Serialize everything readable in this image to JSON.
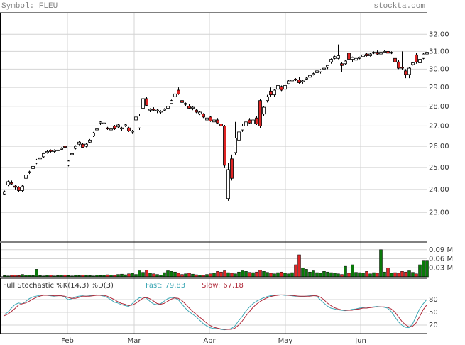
{
  "header": {
    "symbol": "Symbol: FLEU",
    "site": "stockta.com"
  },
  "chart_data": [
    {
      "type": "candlestick",
      "log": true,
      "grid": true,
      "up_color": "#ffffff",
      "down_color": "#e02424",
      "xlim": [
        -0.6,
        119.6
      ],
      "ylim": [
        21.8,
        33.3
      ],
      "xticks": [
        {
          "value": 17.8,
          "label": "Feb"
        },
        {
          "value": 36.6,
          "label": "Mar"
        },
        {
          "value": 57.8,
          "label": "Apr"
        },
        {
          "value": 79.2,
          "label": "May"
        },
        {
          "value": 100.4,
          "label": "Jun"
        }
      ],
      "yticks": [
        {
          "value": 23,
          "label": "23.00"
        },
        {
          "value": 24,
          "label": "24.00"
        },
        {
          "value": 25,
          "label": "25.00"
        },
        {
          "value": 26,
          "label": "26.00"
        },
        {
          "value": 27,
          "label": "27.00"
        },
        {
          "value": 28,
          "label": "28.00"
        },
        {
          "value": 29,
          "label": "29.00"
        },
        {
          "value": 30,
          "label": "30.00"
        },
        {
          "value": 31,
          "label": "31.00"
        },
        {
          "value": 32,
          "label": "32.00"
        }
      ],
      "candles": [
        [
          23.8,
          23.95,
          23.75,
          23.9
        ],
        [
          24.2,
          24.4,
          24.15,
          24.35
        ],
        [
          24.3,
          24.4,
          24.2,
          24.25
        ],
        [
          24.15,
          24.2,
          24.0,
          24.1
        ],
        [
          24.1,
          24.15,
          23.9,
          23.95
        ],
        [
          23.95,
          24.2,
          23.9,
          24.15
        ],
        [
          24.5,
          24.7,
          24.45,
          24.65
        ],
        [
          24.75,
          24.85,
          24.7,
          24.8
        ],
        [
          24.95,
          25.1,
          24.9,
          25.05
        ],
        [
          25.2,
          25.4,
          25.15,
          25.35
        ],
        [
          25.4,
          25.5,
          25.3,
          25.45
        ],
        [
          25.5,
          25.7,
          25.45,
          25.65
        ],
        [
          25.7,
          25.8,
          25.65,
          25.75
        ],
        [
          25.8,
          25.85,
          25.7,
          25.75
        ],
        [
          25.75,
          25.85,
          25.7,
          25.8
        ],
        [
          25.8,
          25.85,
          25.75,
          25.82
        ],
        [
          25.85,
          25.95,
          25.8,
          25.9
        ],
        [
          26.0,
          26.1,
          25.85,
          25.95
        ],
        [
          25.1,
          25.35,
          25.05,
          25.3
        ],
        [
          25.6,
          25.7,
          25.5,
          25.65
        ],
        [
          25.9,
          26.05,
          25.85,
          26.0
        ],
        [
          26.1,
          26.25,
          26.05,
          26.2
        ],
        [
          26.1,
          26.15,
          25.9,
          25.95
        ],
        [
          26.0,
          26.15,
          25.95,
          26.1
        ],
        [
          26.2,
          26.35,
          26.15,
          26.3
        ],
        [
          26.5,
          26.7,
          26.45,
          26.65
        ],
        [
          26.8,
          26.9,
          26.7,
          26.85
        ],
        [
          27.15,
          27.25,
          27.05,
          27.2
        ],
        [
          27.1,
          27.2,
          27.0,
          27.15
        ],
        [
          26.9,
          26.95,
          26.8,
          26.85
        ],
        [
          26.8,
          26.9,
          26.7,
          26.85
        ],
        [
          27.0,
          27.05,
          26.8,
          26.85
        ],
        [
          26.95,
          27.1,
          26.9,
          27.05
        ],
        [
          26.85,
          26.95,
          26.75,
          26.9
        ],
        [
          27.0,
          27.1,
          26.95,
          27.05
        ],
        [
          26.9,
          26.95,
          26.7,
          26.75
        ],
        [
          26.7,
          26.8,
          26.6,
          26.75
        ],
        [
          27.3,
          27.5,
          27.2,
          27.45
        ],
        [
          26.9,
          27.6,
          26.8,
          27.5
        ],
        [
          27.9,
          28.45,
          27.85,
          28.4
        ],
        [
          28.4,
          28.5,
          28.0,
          28.05
        ],
        [
          27.8,
          27.9,
          27.7,
          27.85
        ],
        [
          27.85,
          27.95,
          27.75,
          27.8
        ],
        [
          27.75,
          27.85,
          27.65,
          27.8
        ],
        [
          27.7,
          27.8,
          27.6,
          27.75
        ],
        [
          27.8,
          27.9,
          27.75,
          27.85
        ],
        [
          27.9,
          28.05,
          27.85,
          28.0
        ],
        [
          28.15,
          28.35,
          28.1,
          28.3
        ],
        [
          28.5,
          28.7,
          28.45,
          28.65
        ],
        [
          28.85,
          29.0,
          28.6,
          28.65
        ],
        [
          28.3,
          28.35,
          28.15,
          28.2
        ],
        [
          28.1,
          28.2,
          28.0,
          28.15
        ],
        [
          28.0,
          28.1,
          27.85,
          27.9
        ],
        [
          27.9,
          28.0,
          27.8,
          27.95
        ],
        [
          27.8,
          27.85,
          27.65,
          27.7
        ],
        [
          27.6,
          27.75,
          27.55,
          27.7
        ],
        [
          27.6,
          27.65,
          27.4,
          27.45
        ],
        [
          27.3,
          27.45,
          27.2,
          27.4
        ],
        [
          27.45,
          27.5,
          27.2,
          27.25
        ],
        [
          27.2,
          27.35,
          27.0,
          27.3
        ],
        [
          27.3,
          27.4,
          27.1,
          27.15
        ],
        [
          27.1,
          27.2,
          26.9,
          27.0
        ],
        [
          27.0,
          27.05,
          25.0,
          25.1
        ],
        [
          23.6,
          25.2,
          23.5,
          24.9
        ],
        [
          25.4,
          25.6,
          24.4,
          24.5
        ],
        [
          25.7,
          27.2,
          25.6,
          26.4
        ],
        [
          26.3,
          26.8,
          26.2,
          26.7
        ],
        [
          26.8,
          27.1,
          26.7,
          27.0
        ],
        [
          27.0,
          27.3,
          26.9,
          27.2
        ],
        [
          27.3,
          27.4,
          27.1,
          27.15
        ],
        [
          27.1,
          27.4,
          27.0,
          27.3
        ],
        [
          27.4,
          27.5,
          27.05,
          27.1
        ],
        [
          28.3,
          28.4,
          26.9,
          27.0
        ],
        [
          27.6,
          28.0,
          27.5,
          27.95
        ],
        [
          28.3,
          28.6,
          28.2,
          28.5
        ],
        [
          28.8,
          29.0,
          28.5,
          28.6
        ],
        [
          28.6,
          28.9,
          28.5,
          28.85
        ],
        [
          28.9,
          29.2,
          28.85,
          29.1
        ],
        [
          29.05,
          29.1,
          28.8,
          28.85
        ],
        [
          28.9,
          29.15,
          28.85,
          29.1
        ],
        [
          29.2,
          29.4,
          29.15,
          29.35
        ],
        [
          29.35,
          29.45,
          29.3,
          29.4
        ],
        [
          29.45,
          29.5,
          29.35,
          29.4
        ],
        [
          29.4,
          29.55,
          29.2,
          29.25
        ],
        [
          29.3,
          29.4,
          29.2,
          29.35
        ],
        [
          29.45,
          29.55,
          29.4,
          29.5
        ],
        [
          29.55,
          29.7,
          29.5,
          29.65
        ],
        [
          29.7,
          29.8,
          29.65,
          29.75
        ],
        [
          29.8,
          31.05,
          29.7,
          29.9
        ],
        [
          29.85,
          30.0,
          29.75,
          29.95
        ],
        [
          30.0,
          30.1,
          29.9,
          30.05
        ],
        [
          30.1,
          30.25,
          30.0,
          30.2
        ],
        [
          30.4,
          30.6,
          30.3,
          30.55
        ],
        [
          30.6,
          30.75,
          30.55,
          30.7
        ],
        [
          30.6,
          31.4,
          30.55,
          30.75
        ],
        [
          30.3,
          30.4,
          29.85,
          30.2
        ],
        [
          30.3,
          30.5,
          30.25,
          30.45
        ],
        [
          30.9,
          30.95,
          30.5,
          30.55
        ],
        [
          30.55,
          30.7,
          30.4,
          30.65
        ],
        [
          30.5,
          30.7,
          30.45,
          30.6
        ],
        [
          30.6,
          30.7,
          30.55,
          30.65
        ],
        [
          30.7,
          30.85,
          30.65,
          30.8
        ],
        [
          30.85,
          30.9,
          30.7,
          30.75
        ],
        [
          30.75,
          30.9,
          30.7,
          30.85
        ],
        [
          30.9,
          31.0,
          30.85,
          30.95
        ],
        [
          30.95,
          31.05,
          30.8,
          30.85
        ],
        [
          30.85,
          31.0,
          30.8,
          30.95
        ],
        [
          30.95,
          31.05,
          30.9,
          31.0
        ],
        [
          31.0,
          31.1,
          30.85,
          30.9
        ],
        [
          30.9,
          31.0,
          30.85,
          30.95
        ],
        [
          30.6,
          30.7,
          30.3,
          30.4
        ],
        [
          30.4,
          30.5,
          30.0,
          30.05
        ],
        [
          30.1,
          31.0,
          29.95,
          30.05
        ],
        [
          29.9,
          30.0,
          29.5,
          29.7
        ],
        [
          29.7,
          30.1,
          29.5,
          30.05
        ],
        [
          30.25,
          30.4,
          30.2,
          30.35
        ],
        [
          30.8,
          30.9,
          30.3,
          30.4
        ],
        [
          30.35,
          30.6,
          30.3,
          30.55
        ],
        [
          30.6,
          30.9,
          30.55,
          30.85
        ],
        [
          30.85,
          31.0,
          30.75,
          30.95
        ]
      ]
    },
    {
      "type": "bar",
      "grid": true,
      "up_color": "#0a7a0a",
      "down_color": "#e02424",
      "ylim": [
        0,
        0.113
      ],
      "yticks": [
        {
          "value": 0.03,
          "label": "0.03 M"
        },
        {
          "value": 0.06,
          "label": "0.06 M"
        },
        {
          "value": 0.09,
          "label": "0.09 M"
        }
      ],
      "values": [
        0.004,
        0.003,
        0.005,
        0.006,
        0.004,
        0.008,
        0.006,
        0.005,
        0.004,
        0.025,
        0.004,
        0.003,
        0.005,
        0.006,
        0.003,
        0.004,
        0.005,
        0.006,
        0.004,
        0.003,
        0.005,
        0.004,
        0.006,
        0.005,
        0.004,
        0.003,
        0.006,
        0.004,
        0.005,
        0.007,
        0.006,
        0.005,
        0.008,
        0.009,
        0.007,
        0.01,
        0.012,
        0.008,
        0.02,
        0.015,
        0.022,
        0.012,
        0.01,
        0.008,
        0.006,
        0.014,
        0.02,
        0.018,
        0.016,
        0.012,
        0.008,
        0.01,
        0.012,
        0.009,
        0.007,
        0.006,
        0.005,
        0.008,
        0.01,
        0.012,
        0.018,
        0.016,
        0.02,
        0.014,
        0.012,
        0.01,
        0.016,
        0.02,
        0.018,
        0.015,
        0.014,
        0.016,
        0.022,
        0.018,
        0.015,
        0.012,
        0.01,
        0.014,
        0.016,
        0.012,
        0.01,
        0.014,
        0.04,
        0.073,
        0.03,
        0.025,
        0.016,
        0.02,
        0.014,
        0.012,
        0.018,
        0.016,
        0.014,
        0.012,
        0.01,
        0.008,
        0.035,
        0.012,
        0.04,
        0.015,
        0.014,
        0.012,
        0.018,
        0.01,
        0.014,
        0.012,
        0.09,
        0.016,
        0.03,
        0.012,
        0.014,
        0.012,
        0.018,
        0.016,
        0.02,
        0.015,
        0.01,
        0.04,
        0.055,
        0.055
      ]
    },
    {
      "type": "line",
      "title": "Full Stochastic %K(14,3) %D(3)",
      "grid": true,
      "ylim": [
        0,
        130
      ],
      "yticks": [
        20,
        50,
        80
      ],
      "series": [
        {
          "name": "Fast:",
          "color": "#3aa6b4",
          "values": [
            45,
            50,
            60,
            68,
            72,
            70,
            75,
            82,
            86,
            88,
            90,
            91,
            90,
            89,
            88,
            89,
            90,
            86,
            80,
            82,
            86,
            88,
            89,
            88,
            89,
            90,
            91,
            90,
            88,
            85,
            80,
            74,
            72,
            68,
            66,
            64,
            70,
            78,
            84,
            86,
            84,
            76,
            70,
            68,
            70,
            76,
            82,
            85,
            84,
            80,
            70,
            60,
            52,
            46,
            40,
            32,
            24,
            18,
            14,
            12,
            12,
            10,
            9,
            10,
            12,
            18,
            30,
            40,
            52,
            62,
            70,
            76,
            80,
            84,
            87,
            89,
            90,
            91,
            91,
            90,
            90,
            89,
            88,
            88,
            87,
            88,
            89,
            90,
            88,
            80,
            72,
            65,
            60,
            58,
            56,
            55,
            54,
            55,
            57,
            58,
            60,
            61,
            60,
            62,
            63,
            64,
            63,
            62,
            60,
            52,
            40,
            28,
            20,
            15,
            14,
            22,
            40,
            58,
            70,
            79.83
          ]
        },
        {
          "name": "Slow:",
          "color": "#b02a3a",
          "values": [
            42,
            46,
            52,
            59,
            67,
            70,
            72,
            76,
            81,
            85,
            88,
            90,
            90,
            90,
            89,
            89,
            89,
            88,
            85,
            83,
            83,
            85,
            88,
            88,
            88,
            89,
            90,
            90,
            90,
            88,
            84,
            80,
            75,
            71,
            69,
            66,
            67,
            71,
            77,
            83,
            85,
            82,
            77,
            71,
            69,
            71,
            76,
            81,
            84,
            83,
            78,
            70,
            61,
            53,
            46,
            39,
            32,
            25,
            19,
            15,
            13,
            11,
            10,
            10,
            10,
            13,
            20,
            29,
            41,
            51,
            61,
            69,
            75,
            80,
            84,
            87,
            89,
            90,
            91,
            91,
            90,
            90,
            89,
            88,
            88,
            88,
            88,
            89,
            89,
            86,
            80,
            72,
            66,
            61,
            58,
            56,
            55,
            55,
            55,
            57,
            58,
            60,
            60,
            61,
            62,
            63,
            63,
            63,
            62,
            58,
            51,
            40,
            29,
            21,
            16,
            17,
            25,
            40,
            56,
            67.18
          ]
        }
      ]
    }
  ]
}
